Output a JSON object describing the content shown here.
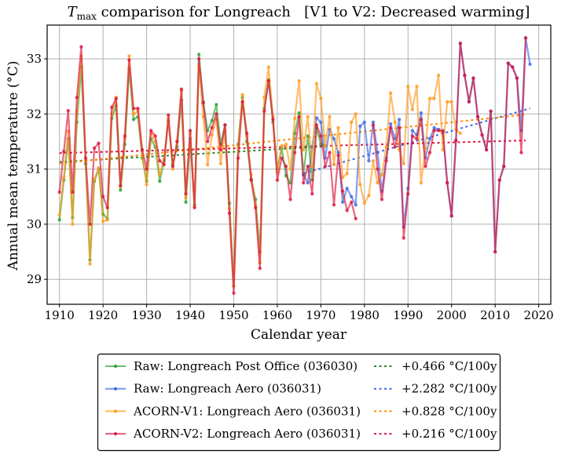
{
  "chart_data": {
    "type": "line",
    "title_var": "T",
    "title_sub": "max",
    "title_rest": " comparison for Longreach   [V1 to V2: Decreased warming]",
    "xlabel": "Calendar year",
    "ylabel": "Annual mean temperature (°C)",
    "xlim": [
      1907.3,
      2023.0
    ],
    "ylim": [
      28.5,
      33.6
    ],
    "xticks": [
      1910,
      1920,
      1930,
      1940,
      1950,
      1960,
      1970,
      1980,
      1990,
      2000,
      2010,
      2020
    ],
    "yticks": [
      29,
      30,
      31,
      32,
      33
    ],
    "grid": true,
    "legend_position": "below-center",
    "series": [
      {
        "name": "Raw: Longreach Post Office (036030)",
        "color": "#2ca02c",
        "start_year": 1910,
        "values": [
          30.08,
          30.8,
          31.55,
          30.12,
          31.85,
          32.85,
          31.1,
          29.35,
          30.78,
          31.0,
          30.18,
          30.1,
          31.92,
          32.15,
          30.62,
          31.45,
          32.82,
          31.9,
          31.95,
          31.2,
          30.78,
          31.55,
          31.4,
          30.78,
          31.15,
          31.88,
          31.08,
          31.4,
          32.25,
          30.4,
          31.55,
          30.35,
          33.08,
          32.22,
          31.7,
          31.88,
          32.17,
          31.45,
          31.8,
          30.38,
          28.88,
          31.45,
          32.3,
          31.5,
          30.82,
          30.45,
          29.5,
          32.1,
          32.62,
          31.85,
          31.0,
          31.38,
          30.88,
          30.75,
          31.65,
          32.02,
          30.9,
          31.6,
          30.8,
          31.75,
          31.45,
          31.42
        ]
      },
      {
        "name": "Raw: Longreach Aero (036031)",
        "color": "#4169e1",
        "start_year": 1966,
        "values": [
          30.9,
          30.75,
          31.4,
          31.93,
          31.85,
          31.2,
          31.72,
          31.55,
          31.3,
          30.4,
          30.65,
          30.5,
          30.35,
          31.78,
          31.85,
          31.15,
          31.85,
          31.3,
          30.6,
          31.2,
          31.82,
          31.55,
          31.9,
          29.95,
          30.65,
          31.7,
          31.62,
          32.02,
          31.2,
          31.55,
          31.75,
          31.72,
          31.7,
          30.75,
          30.15,
          31.52,
          33.28,
          32.7,
          32.22,
          32.65,
          31.95,
          31.62,
          31.35,
          32.05,
          29.5,
          30.8,
          31.05,
          32.92,
          32.85,
          32.65,
          31.7,
          33.38,
          32.9
        ]
      },
      {
        "name": "ACORN-V1: Longreach Aero (036031)",
        "color": "#ff9a1a",
        "start_year": 1910,
        "values": [
          30.17,
          30.85,
          31.69,
          30.0,
          32.05,
          33.05,
          31.15,
          29.28,
          30.82,
          31.02,
          30.05,
          30.08,
          32.0,
          32.3,
          30.68,
          31.55,
          33.05,
          32.0,
          32.05,
          31.25,
          30.72,
          31.65,
          31.5,
          30.9,
          31.18,
          31.92,
          31.0,
          31.5,
          32.42,
          30.48,
          31.65,
          30.32,
          32.88,
          31.95,
          31.08,
          31.62,
          31.9,
          31.1,
          31.7,
          30.28,
          28.88,
          31.4,
          32.35,
          31.6,
          30.9,
          30.35,
          29.3,
          32.3,
          32.85,
          31.95,
          30.95,
          31.42,
          31.45,
          31.0,
          31.92,
          32.6,
          31.35,
          31.95,
          31.05,
          32.55,
          32.28,
          31.42,
          31.95,
          31.08,
          31.75,
          30.85,
          30.92,
          31.85,
          32.0,
          30.72,
          30.38,
          30.52,
          31.15,
          30.75,
          30.9,
          31.4,
          32.38,
          31.85,
          31.35,
          31.1,
          32.5,
          32.08,
          32.5,
          30.75,
          31.38,
          32.28,
          32.28,
          32.7,
          31.35,
          32.22,
          32.22,
          31.72,
          31.65
        ]
      },
      {
        "name": "ACORN-V2: Longreach Aero (036031)",
        "color": "#dc143c",
        "start_year": 1910,
        "values": [
          30.58,
          31.32,
          32.06,
          30.58,
          32.3,
          33.22,
          31.2,
          30.0,
          31.38,
          31.47,
          30.5,
          30.3,
          32.12,
          32.28,
          30.7,
          31.6,
          32.98,
          32.1,
          32.1,
          31.35,
          31.0,
          31.7,
          31.6,
          31.15,
          31.08,
          31.98,
          31.05,
          31.5,
          32.45,
          30.55,
          31.7,
          30.3,
          33.0,
          32.2,
          31.5,
          31.75,
          32.0,
          31.35,
          31.8,
          30.2,
          28.75,
          31.2,
          32.22,
          31.65,
          30.8,
          30.3,
          29.2,
          32.05,
          32.6,
          31.9,
          30.8,
          31.2,
          31.05,
          30.45,
          31.3,
          31.95,
          30.75,
          31.05,
          30.55,
          31.8,
          31.6,
          31.05,
          31.3,
          30.35,
          31.25,
          30.6,
          30.25,
          30.4,
          30.1,
          null,
          null,
          null,
          31.8,
          31.0,
          30.45,
          31.15,
          31.75,
          31.4,
          31.75,
          29.75,
          30.55,
          31.6,
          31.55,
          31.9,
          31.05,
          31.3,
          31.7,
          31.7,
          31.68,
          30.75,
          30.15,
          31.52,
          33.28,
          32.7,
          32.22,
          32.65,
          31.95,
          31.62,
          31.35,
          32.05,
          29.5,
          30.8,
          31.05,
          32.92,
          32.85,
          32.65,
          31.3,
          33.38
        ]
      }
    ],
    "trends": [
      {
        "label": "+0.466 °C/100y",
        "color": "#228b22",
        "x": [
          1910,
          1971
        ],
        "y": [
          31.13,
          31.41
        ]
      },
      {
        "label": "+2.282 °C/100y",
        "color": "#4169e1",
        "x": [
          1966,
          2018
        ],
        "y": [
          30.92,
          32.1
        ]
      },
      {
        "label": "+0.828 °C/100y",
        "color": "#ff8c00",
        "x": [
          1910,
          2017
        ],
        "y": [
          31.1,
          31.99
        ]
      },
      {
        "label": "+0.216 °C/100y",
        "color": "#dc143c",
        "x": [
          1910,
          2017
        ],
        "y": [
          31.29,
          31.52
        ]
      }
    ]
  },
  "legend": {
    "entries": [
      {
        "series": "Raw: Longreach Post Office (036030)",
        "trend": "+0.466 °C/100y"
      },
      {
        "series": "Raw: Longreach Aero (036031)",
        "trend": "+2.282 °C/100y"
      },
      {
        "series": "ACORN-V1: Longreach Aero (036031)",
        "trend": "+0.828 °C/100y"
      },
      {
        "series": "ACORN-V2: Longreach Aero (036031)",
        "trend": "+0.216 °C/100y"
      }
    ]
  }
}
